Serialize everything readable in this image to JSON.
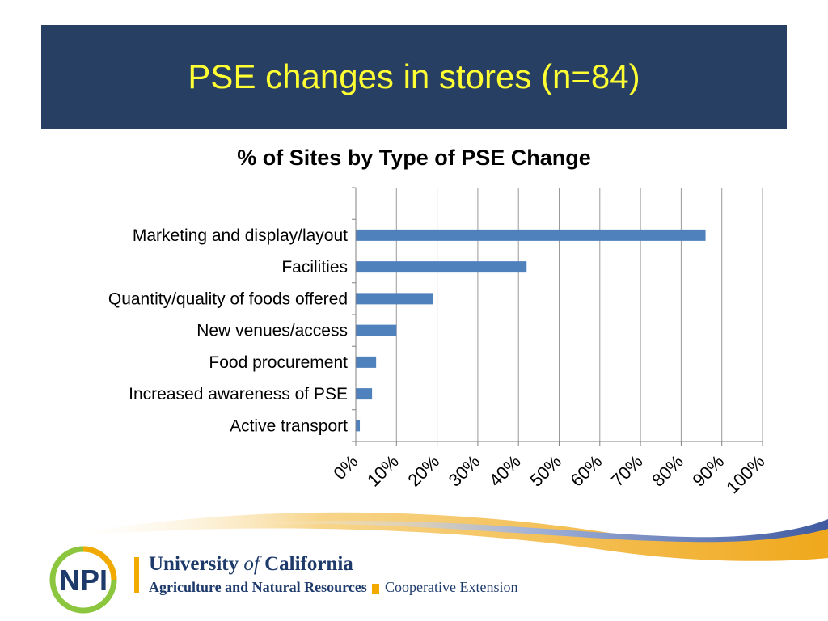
{
  "slide": {
    "title": "PSE changes in stores (n=84)"
  },
  "colors": {
    "banner_bg": "#263f62",
    "title_text": "#ffff33",
    "bar_fill": "#4f81bd",
    "gridline": "#9a9a9a",
    "swoosh_blue": "#4a63a8",
    "swoosh_gold": "#f0b020",
    "uc_gold": "#f2a900",
    "uc_blue": "#1d3a6b",
    "npi_green": "#8cc63f"
  },
  "chart_data": {
    "type": "bar",
    "orientation": "horizontal",
    "title": "% of Sites by Type of PSE Change",
    "categories": [
      "Marketing and display/layout",
      "Facilities",
      "Quantity/quality of foods offered",
      "New venues/access",
      "Food procurement",
      "Increased awareness of PSE",
      "Active transport"
    ],
    "values": [
      86,
      42,
      19,
      10,
      5,
      4,
      1
    ],
    "xlim": [
      0,
      100
    ],
    "x_ticks": [
      "0%",
      "10%",
      "20%",
      "30%",
      "40%",
      "50%",
      "60%",
      "70%",
      "80%",
      "90%",
      "100%"
    ],
    "grid": true,
    "legend": "none"
  },
  "footer": {
    "org_name_pre": "University ",
    "org_name_of": "of",
    "org_name_post": " California",
    "division": "Agriculture and Natural Resources",
    "extension": "Cooperative Extension",
    "logo_text": "NPI"
  }
}
